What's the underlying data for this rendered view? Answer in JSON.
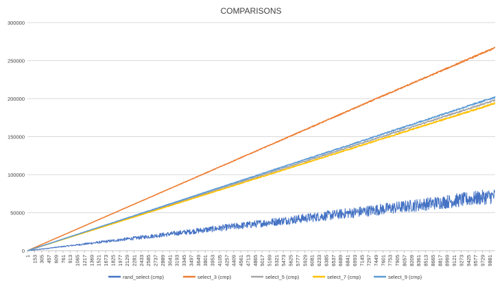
{
  "chart_data": {
    "type": "line",
    "title": "COMPARISONS",
    "xlabel": "",
    "ylabel": "",
    "xlim": [
      1,
      10000
    ],
    "ylim": [
      0,
      300000
    ],
    "y_ticks": [
      0,
      50000,
      100000,
      150000,
      200000,
      250000,
      300000
    ],
    "y_tick_labels": [
      "0",
      "50000",
      "100000",
      "150000",
      "200000",
      "250000",
      "300000"
    ],
    "x_tick_labels": [
      "1",
      "153",
      "305",
      "457",
      "609",
      "761",
      "913",
      "1065",
      "1217",
      "1369",
      "1521",
      "1673",
      "1825",
      "1977",
      "2129",
      "2281",
      "2433",
      "2585",
      "2737",
      "2889",
      "3041",
      "3193",
      "3345",
      "3497",
      "3649",
      "3801",
      "3953",
      "4105",
      "4257",
      "4409",
      "4561",
      "4713",
      "4865",
      "5017",
      "5169",
      "5321",
      "5473",
      "5625",
      "5777",
      "5929",
      "6081",
      "6233",
      "6385",
      "6537",
      "6689",
      "6841",
      "6993",
      "7145",
      "7297",
      "7449",
      "7601",
      "7753",
      "7905",
      "8057",
      "8209",
      "8361",
      "8513",
      "8665",
      "8817",
      "8969",
      "9121",
      "9273",
      "9425",
      "9577",
      "9729",
      "9881"
    ],
    "grid": true,
    "legend_position": "bottom",
    "series": [
      {
        "name": "rand_select (cmp)",
        "color": "#4472c4",
        "x": [
          1,
          2500,
          5000,
          7500,
          10000
        ],
        "values": [
          0,
          18000,
          36000,
          54000,
          72000
        ],
        "noise_spread": 20000
      },
      {
        "name": "select_3 (cmp)",
        "color": "#ed7d31",
        "x": [
          1,
          2500,
          5000,
          7500,
          10000
        ],
        "values": [
          0,
          67000,
          134000,
          201000,
          267000
        ],
        "noise_spread": 2000
      },
      {
        "name": "select_5 (cmp)",
        "color": "#a5a5a5",
        "x": [
          1,
          2500,
          5000,
          7500,
          10000
        ],
        "values": [
          0,
          49500,
          99000,
          148500,
          198000
        ],
        "noise_spread": 2000
      },
      {
        "name": "select_7 (cmp)",
        "color": "#ffc000",
        "x": [
          1,
          2500,
          5000,
          7500,
          10000
        ],
        "values": [
          0,
          48500,
          97000,
          145500,
          194000
        ],
        "noise_spread": 2000
      },
      {
        "name": "select_9 (cmp)",
        "color": "#5b9bd5",
        "x": [
          1,
          2500,
          5000,
          7500,
          10000
        ],
        "values": [
          0,
          50500,
          101000,
          151500,
          202000
        ],
        "noise_spread": 2000
      }
    ]
  }
}
